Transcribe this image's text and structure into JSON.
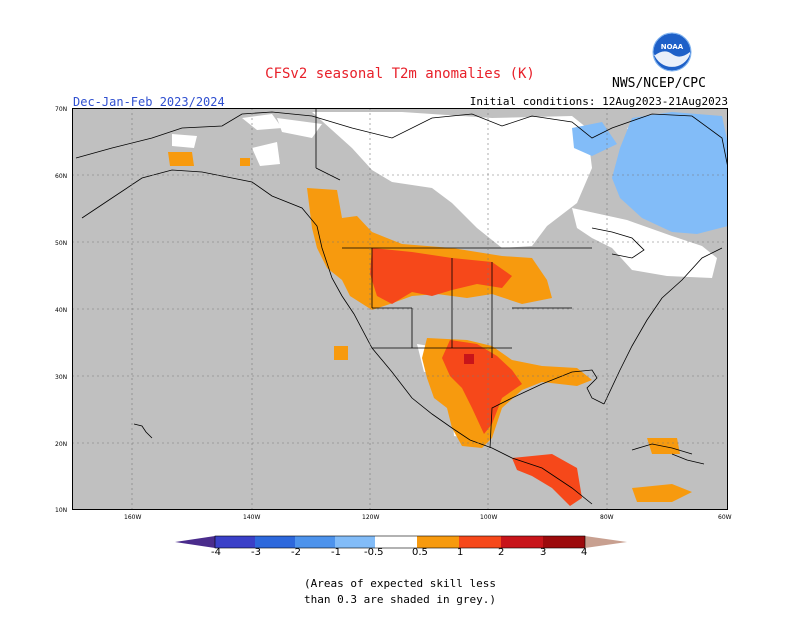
{
  "header": {
    "title": "CFSv2 seasonal T2m anomalies (K)",
    "season": "Dec-Jan-Feb 2023/2024",
    "initial_conditions": "Initial conditions: 12Aug2023-21Aug2023",
    "agency": "NWS/NCEP/CPC",
    "logo_text": "NOAA"
  },
  "map": {
    "lat_labels": [
      "70N",
      "60N",
      "50N",
      "40N",
      "30N",
      "20N",
      "10N"
    ],
    "lon_labels": [
      "160W",
      "140W",
      "120W",
      "100W",
      "80W",
      "60W"
    ]
  },
  "colorbar": {
    "labels": [
      "-4",
      "-3",
      "-2",
      "-1",
      "-0.5",
      "0.5",
      "1",
      "2",
      "3",
      "4"
    ],
    "colors": {
      "lt_-4": "#4a2c8c",
      "-4_-3": "#3a40c8",
      "-3_-2": "#2d68dc",
      "-2_-1": "#4d93ec",
      "-1_-0.5": "#82bcf8",
      "neutral": "#ffffff",
      "0.5_1": "#f79a0e",
      "1_2": "#f6481a",
      "2_3": "#c8141a",
      "3_4": "#9c0a0c",
      "4_5": "#c8a090",
      "gt_5": "#7a5040"
    }
  },
  "note": {
    "line1": "(Areas of expected skill less",
    "line2": "than 0.3 are shaded in grey.)"
  }
}
